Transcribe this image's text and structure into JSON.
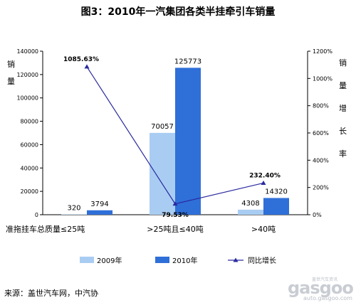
{
  "title": "图3：2010年一汽集团各类半挂牵引车销量",
  "source": "来源：盖世汽车网，中汽协",
  "watermark": {
    "main": "gasgoo",
    "sub": "auto.gasgoo.com",
    "top": "盖世汽车资讯"
  },
  "colors": {
    "series_2009": "#a9cdf2",
    "series_2010": "#2f6fd8",
    "growth_line": "#2a2aa0"
  },
  "chart_data": {
    "type": "bar",
    "title": "图3：2010年一汽集团各类半挂牵引车销量",
    "categories": [
      "准拖挂车总质量≤25吨",
      ">25吨且≤40吨",
      ">40吨"
    ],
    "series": [
      {
        "name": "2009年",
        "values": [
          320,
          70057,
          4308
        ]
      },
      {
        "name": "2010年",
        "values": [
          3794,
          125773,
          14320
        ]
      }
    ],
    "line_series": {
      "name": "同比增长",
      "values": [
        1085.63,
        79.53,
        232.4
      ],
      "labels": [
        "1085.63%",
        "79.53%",
        "232.40%"
      ]
    },
    "ylabel_left": "销量",
    "ylabel_right": "销量增长率",
    "ylim_left": [
      0,
      140000
    ],
    "yticks_left": [
      "0",
      "20000",
      "40000",
      "60000",
      "80000",
      "100000",
      "120000",
      "140000"
    ],
    "ylim_right": [
      0,
      1200
    ],
    "yticks_right": [
      "0%",
      "200%",
      "400%",
      "600%",
      "800%",
      "1000%",
      "1200%"
    ],
    "legend": [
      "2009年",
      "2010年",
      "同比增长"
    ],
    "legend_position": "bottom",
    "grid": false
  }
}
